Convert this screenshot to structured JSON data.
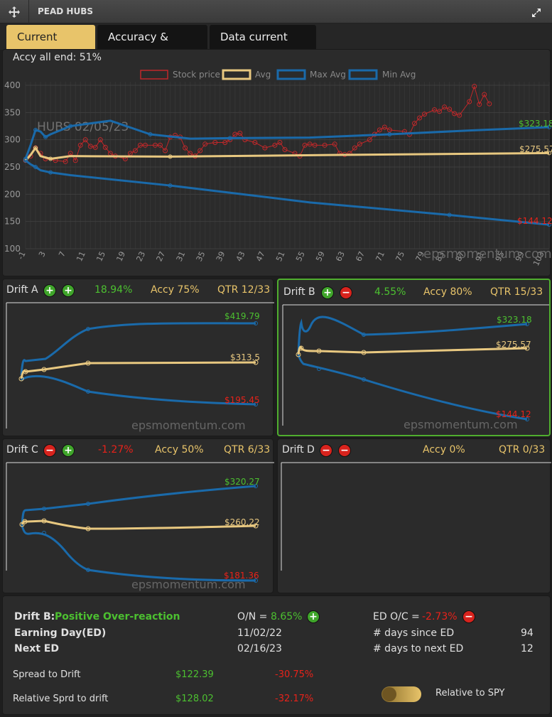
{
  "app": {
    "title": "PEAD HUBS"
  },
  "tabs": [
    {
      "label": "Current PEAD"
    },
    {
      "label": "Accuracy & history"
    },
    {
      "label": "Data current drift"
    }
  ],
  "main_chart": {
    "accy_text": "Accy all end: 51%",
    "watermark_ticker": "HUBS 02/05/23",
    "watermark_site": "epsmomentum.com",
    "legend": [
      {
        "name": "Stock price",
        "color": "#c0282a"
      },
      {
        "name": "Avg",
        "color": "#e8c880"
      },
      {
        "name": "Max Avg",
        "color": "#1a6aaa"
      },
      {
        "name": "Min Avg",
        "color": "#1a6aaa"
      }
    ],
    "end_labels": {
      "max": "$323.18",
      "avg": "$275.57",
      "min": "$144.12"
    }
  },
  "drifts": [
    {
      "title": "Drift A",
      "badge1": "plus",
      "badge2": "plus",
      "pct": "18.94%",
      "pct_color": "green",
      "accy": "Accy 75%",
      "qtr": "QTR 12/33",
      "max_label": "$419.79",
      "avg_label": "$313.5",
      "min_label": "$195.45",
      "watermark": "epsmomentum.com"
    },
    {
      "title": "Drift B",
      "badge1": "plus",
      "badge2": "minus",
      "pct": "4.55%",
      "pct_color": "green",
      "accy": "Accy 80%",
      "qtr": "QTR 15/33",
      "max_label": "$323.18",
      "avg_label": "$275.57",
      "min_label": "$144.12",
      "watermark": "epsmomentum.com"
    },
    {
      "title": "Drift C",
      "badge1": "minus",
      "badge2": "plus",
      "pct": "-1.27%",
      "pct_color": "red",
      "accy": "Accy 50%",
      "qtr": "QTR 6/33",
      "max_label": "$320.27",
      "avg_label": "$260.22",
      "min_label": "$181.36",
      "watermark": "epsmomentum.com"
    },
    {
      "title": "Drift D",
      "badge1": "minus",
      "badge2": "minus",
      "pct": "",
      "pct_color": "green",
      "accy": "Accy 0%",
      "qtr": "QTR 0/33",
      "max_label": "",
      "avg_label": "",
      "min_label": "",
      "watermark": ""
    }
  ],
  "summary": {
    "drift_label": "Drift B:",
    "drift_desc": "Positive Over-reaction",
    "on_label": "O/N =",
    "on_value": "8.65%",
    "edoc_label": "ED O/C =",
    "edoc_value": "-2.73%",
    "earning_day_label": "Earning Day(ED)",
    "earning_day_value": "11/02/22",
    "next_ed_label": "Next ED",
    "next_ed_value": "02/16/23",
    "days_since_label": "# days since ED",
    "days_since_value": "94",
    "days_next_label": "# days to next ED",
    "days_next_value": "12",
    "spread_label": "Spread to Drift",
    "spread_value": "$122.39",
    "spread_pct": "-30.75%",
    "rel_label": "Relative Sprd to drift",
    "rel_value": "$128.02",
    "rel_pct": "-32.17%",
    "toggle_label": "Relative to SPY"
  },
  "chart_data": {
    "type": "line",
    "title": "",
    "xlabel": "",
    "ylabel": "",
    "ylim": [
      100,
      400
    ],
    "y_ticks": [
      100,
      150,
      200,
      250,
      300,
      350,
      400
    ],
    "x_ticks": [
      "-1",
      "3",
      "7",
      "11",
      "15",
      "19",
      "23",
      "27",
      "31",
      "35",
      "39",
      "43",
      "47",
      "51",
      "55",
      "59",
      "63",
      "67",
      "71",
      "75",
      "79",
      "83",
      "87",
      "91",
      "95",
      "99",
      "103"
    ],
    "x_range": [
      -1,
      104
    ],
    "series": [
      {
        "name": "Stock price",
        "color": "#c0282a",
        "x": [
          -1,
          0,
          1,
          2,
          3,
          5,
          7,
          8,
          9,
          10,
          11,
          12,
          13,
          14,
          15,
          16,
          17,
          19,
          20,
          21,
          22,
          23,
          25,
          26,
          27,
          28,
          29,
          30,
          31,
          32,
          33,
          34,
          35,
          37,
          39,
          40,
          41,
          42,
          43,
          45,
          47,
          49,
          50,
          51,
          53,
          54,
          55,
          56,
          57,
          59,
          61,
          62,
          63,
          64,
          65,
          66,
          68,
          69,
          70,
          71,
          72,
          75,
          76,
          77,
          78,
          79,
          81,
          82,
          83,
          84,
          85,
          86,
          88,
          89,
          90,
          91,
          92
        ],
        "y": [
          262,
          270,
          285,
          275,
          265,
          262,
          260,
          275,
          262,
          290,
          300,
          288,
          286,
          300,
          286,
          275,
          270,
          265,
          275,
          280,
          290,
          290,
          290,
          290,
          280,
          305,
          308,
          305,
          285,
          275,
          270,
          280,
          292,
          295,
          295,
          300,
          310,
          312,
          300,
          295,
          285,
          290,
          295,
          282,
          275,
          270,
          290,
          292,
          290,
          290,
          292,
          275,
          273,
          275,
          285,
          292,
          300,
          310,
          318,
          323,
          318,
          315,
          310,
          330,
          340,
          347,
          355,
          352,
          360,
          356,
          348,
          345,
          370,
          398,
          365,
          383,
          366
        ]
      },
      {
        "name": "Avg",
        "color": "#e8c880",
        "x": [
          -1,
          0,
          1,
          2,
          4,
          8,
          28,
          60,
          104
        ],
        "y": [
          262,
          272,
          285,
          270,
          265,
          270,
          269,
          272,
          275.57
        ]
      },
      {
        "name": "Max Avg",
        "color": "#1a6aaa",
        "x": [
          -1,
          0,
          1,
          2,
          3,
          4,
          8,
          16,
          24,
          32,
          40,
          56,
          72,
          88,
          104
        ],
        "y": [
          265,
          290,
          318,
          315,
          305,
          310,
          325,
          335,
          310,
          302,
          303,
          304,
          310,
          317,
          323.18
        ]
      },
      {
        "name": "Min Avg",
        "color": "#1a6aaa",
        "x": [
          -1,
          0,
          1,
          2,
          4,
          8,
          28,
          56,
          84,
          104
        ],
        "y": [
          262,
          255,
          250,
          244,
          240,
          235,
          216,
          185,
          162,
          144.12
        ]
      }
    ]
  }
}
